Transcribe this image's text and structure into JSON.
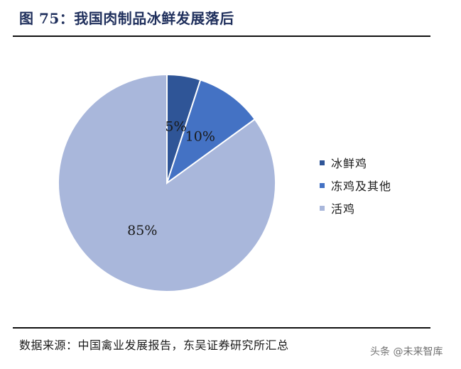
{
  "figure": {
    "title": "图 75：我国肉制品冰鲜发展落后",
    "source": "数据来源：中国禽业发展报告，东吴证券研究所汇总",
    "watermark": "头条 @未来智库"
  },
  "chart_data": {
    "type": "pie",
    "labels": [
      "冰鲜鸡",
      "冻鸡及其他",
      "活鸡"
    ],
    "values": [
      5,
      10,
      85
    ],
    "value_labels": [
      "5%",
      "10%",
      "85%"
    ],
    "colors": [
      "#2f5597",
      "#4472c4",
      "#a9b7db"
    ],
    "start_angle": "top (12 o'clock)",
    "direction": "clockwise",
    "legend": "right"
  }
}
